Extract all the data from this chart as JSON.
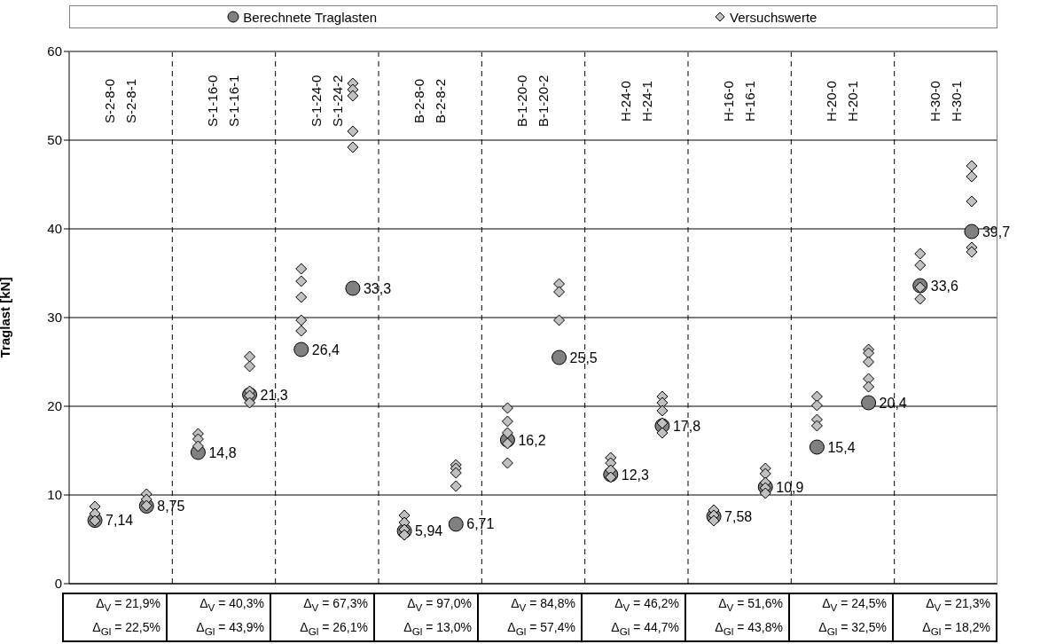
{
  "chart_data": {
    "type": "scatter",
    "ylabel": "Traglast [kN]",
    "categories": [
      null,
      null,
      null,
      null,
      null,
      null,
      null,
      null,
      null,
      null,
      null,
      null,
      null,
      null,
      null,
      null,
      null,
      null
    ],
    "series": [
      {
        "name": "Berechnete Traglasten",
        "color": "#808080",
        "marker": "circle",
        "values": [
          7.14,
          8.75,
          14.8,
          21.3,
          26.4,
          33.3,
          5.94,
          6.71,
          16.2,
          25.5,
          12.3,
          17.8,
          7.58,
          10.9,
          15.4,
          20.4,
          33.6,
          39.7
        ],
        "value_labels": [
          "7,14",
          "8,75",
          "14,8",
          "21,3",
          "26,4",
          "33,3",
          "5,94",
          "6,71",
          "16,2",
          "25,5",
          "12,3",
          "17,8",
          "7,58",
          "10,9",
          "15,4",
          "20,4",
          "33,6",
          "39,7"
        ]
      },
      {
        "name": "Versuchswerte",
        "color": "#c0c0c0",
        "marker": "diamond",
        "values": [
          8.7,
          10.1,
          16.9,
          25.6,
          35.5,
          56.4,
          7.7,
          13.4,
          19.8,
          33.8,
          14.2,
          21.1,
          8.3,
          13.0,
          21.1,
          26.4,
          37.2,
          47.1
        ]
      },
      {
        "color": "#c0c0c0",
        "marker": "diamond",
        "values": [
          7.9,
          9.5,
          16.3,
          24.5,
          34.1,
          55.7,
          6.9,
          13.0,
          18.3,
          32.9,
          13.6,
          20.4,
          7.7,
          12.4,
          20.1,
          26.0,
          35.9,
          45.9
        ]
      },
      {
        "color": "#c0c0c0",
        "marker": "diamond",
        "values": [
          7.1,
          8.8,
          15.5,
          21.7,
          32.3,
          55.0,
          6.1,
          12.5,
          17.0,
          null,
          12.8,
          19.5,
          7.1,
          11.4,
          18.5,
          25.0,
          33.4,
          43.1
        ]
      },
      {
        "color": "#c0c0c0",
        "marker": "diamond",
        "values": [
          null,
          null,
          null,
          21.2,
          29.7,
          51.0,
          5.5,
          11.0,
          15.8,
          29.7,
          12.0,
          18.1,
          null,
          10.8,
          17.8,
          23.1,
          32.1,
          37.9
        ]
      },
      {
        "color": "#c0c0c0",
        "marker": "diamond",
        "values": [
          null,
          null,
          null,
          20.4,
          28.5,
          49.2,
          null,
          null,
          13.6,
          null,
          null,
          17.0,
          null,
          10.2,
          null,
          22.2,
          null,
          37.4
        ]
      }
    ],
    "ylim": [
      0,
      60
    ],
    "yticks": [
      0,
      10,
      20,
      30,
      40,
      50,
      60
    ],
    "grid": true,
    "legend": "top",
    "tick_labels": "y",
    "annotations": [
      "S-2-8-0\nS-2-8-1",
      "S-1-16-0\nS-1-16-1",
      "S-1-24-0\nS-1-24-2",
      "B-2-8-0\nB-2-8-2",
      "B-1-20-0\nB-1-20-2",
      "H-24-0\nH-24-1",
      "H-16-0\nH-16-1",
      "H-20-0\nH-20-1",
      "H-30-0\nH-30-1",
      "Δ$_{V}$ = 21,9%",
      "Δ$_{Gl}$ = 22,5%",
      "Δ$_{V}$ = 40,3%",
      "Δ$_{Gl}$ = 43,9%",
      "Δ$_{V}$ = 67,3%",
      "Δ$_{Gl}$ = 26,1%",
      "Δ$_{V}$ = 97,0%",
      "Δ$_{Gl}$ = 13,0%",
      "Δ$_{V}$ = 84,8%",
      "Δ$_{Gl}$ = 57,4%",
      "Δ$_{V}$ = 46,2%",
      "Δ$_{Gl}$ = 44,7%",
      "Δ$_{V}$ = 51,6%",
      "Δ$_{Gl}$ = 43,8%",
      "Δ$_{V}$ = 24,5%",
      "Δ$_{Gl}$ = 32,5%",
      "Δ$_{V}$ = 21,3%",
      "Δ$_{Gl}$ = 18,2%"
    ]
  }
}
